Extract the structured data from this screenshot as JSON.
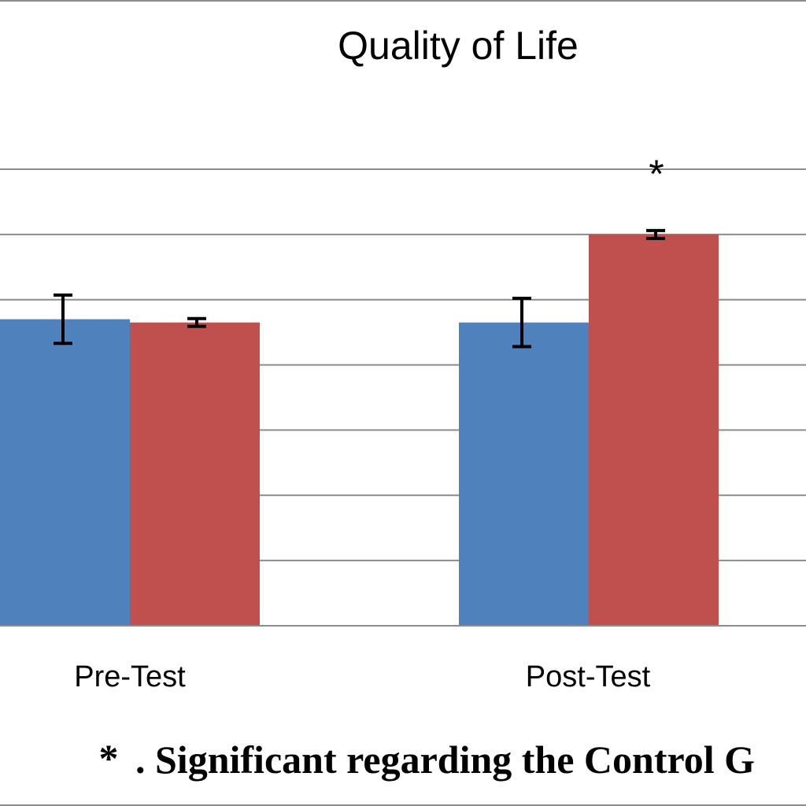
{
  "chart_data": {
    "type": "bar",
    "title": "Quality of Life",
    "categories": [
      "Pre-Test",
      "Post-Test"
    ],
    "series": [
      {
        "color": "#4f81bd",
        "values": [
          4.7,
          4.65
        ],
        "error": [
          0.37,
          0.37
        ]
      },
      {
        "color": "#c0504d",
        "values": [
          4.65,
          6.0
        ],
        "error": [
          0.06,
          0.06
        ]
      }
    ],
    "ylim": [
      0,
      7
    ],
    "gridlines": [
      1,
      2,
      3,
      4,
      5,
      6,
      7
    ],
    "grid": true,
    "annotations": [
      {
        "category": "Post-Test",
        "series": 1,
        "text": "*"
      }
    ],
    "footnote": {
      "symbol": "*",
      "text": ". Significant regarding the Control G"
    }
  }
}
